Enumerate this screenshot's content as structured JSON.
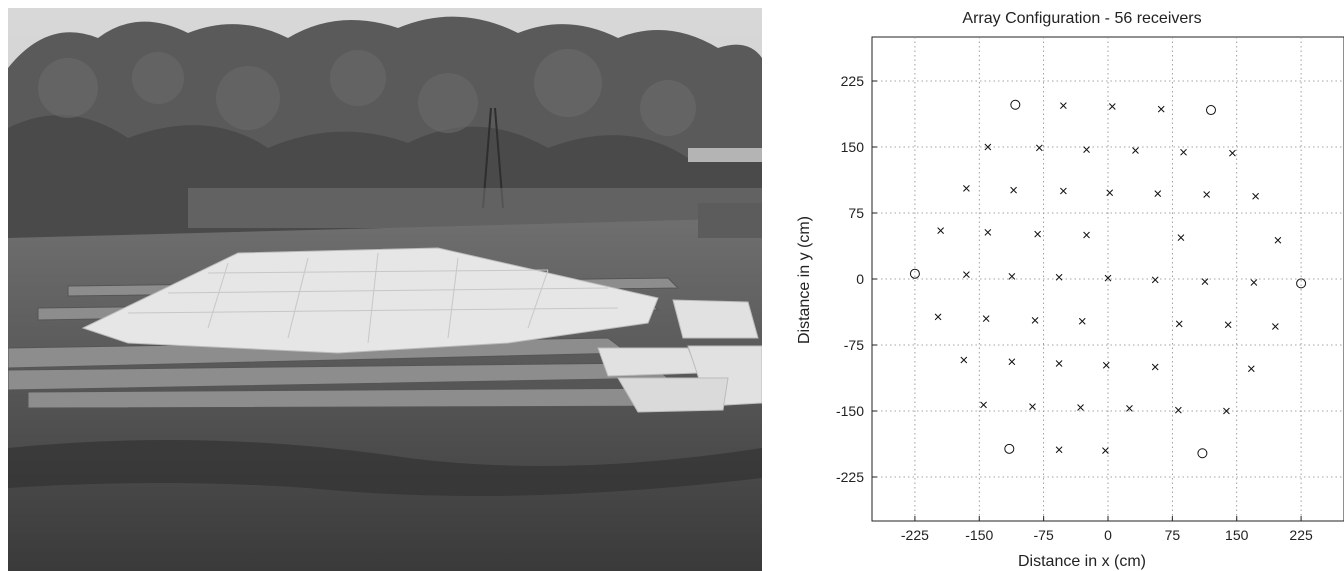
{
  "chart_data": {
    "type": "scatter",
    "title": "Array Configuration - 56 receivers",
    "xlabel": "Distance in x (cm)",
    "ylabel": "Distance in y (cm)",
    "xlim": [
      -275,
      275
    ],
    "ylim": [
      -275,
      275
    ],
    "xticks": [
      -225,
      -150,
      -75,
      0,
      75,
      150,
      225
    ],
    "yticks": [
      -225,
      -150,
      -75,
      0,
      75,
      150,
      225
    ],
    "grid": true,
    "series": [
      {
        "marker": "o",
        "points": [
          [
            -108,
            198
          ],
          [
            120,
            192
          ],
          [
            -225,
            6
          ],
          [
            225,
            -5
          ],
          [
            -115,
            -193
          ],
          [
            110,
            -198
          ]
        ]
      },
      {
        "marker": "x",
        "points": [
          [
            -52,
            197
          ],
          [
            5,
            196
          ],
          [
            62,
            193
          ],
          [
            -140,
            150
          ],
          [
            -80,
            149
          ],
          [
            -25,
            147
          ],
          [
            32,
            146
          ],
          [
            88,
            144
          ],
          [
            145,
            143
          ],
          [
            -165,
            103
          ],
          [
            -110,
            101
          ],
          [
            -52,
            100
          ],
          [
            2,
            98
          ],
          [
            58,
            97
          ],
          [
            115,
            96
          ],
          [
            172,
            94
          ],
          [
            -195,
            55
          ],
          [
            -140,
            53
          ],
          [
            -82,
            51
          ],
          [
            -25,
            50
          ],
          [
            85,
            47
          ],
          [
            198,
            44
          ],
          [
            -165,
            5
          ],
          [
            -112,
            3
          ],
          [
            -57,
            2
          ],
          [
            0,
            1
          ],
          [
            55,
            -1
          ],
          [
            113,
            -3
          ],
          [
            170,
            -4
          ],
          [
            -198,
            -43
          ],
          [
            -142,
            -45
          ],
          [
            -85,
            -47
          ],
          [
            -30,
            -48
          ],
          [
            83,
            -51
          ],
          [
            140,
            -52
          ],
          [
            195,
            -54
          ],
          [
            -168,
            -92
          ],
          [
            -112,
            -94
          ],
          [
            -57,
            -96
          ],
          [
            -2,
            -98
          ],
          [
            55,
            -100
          ],
          [
            167,
            -102
          ],
          [
            -145,
            -143
          ],
          [
            -88,
            -145
          ],
          [
            -32,
            -146
          ],
          [
            25,
            -147
          ],
          [
            82,
            -149
          ],
          [
            138,
            -150
          ],
          [
            -57,
            -194
          ],
          [
            -3,
            -195
          ]
        ]
      }
    ]
  }
}
